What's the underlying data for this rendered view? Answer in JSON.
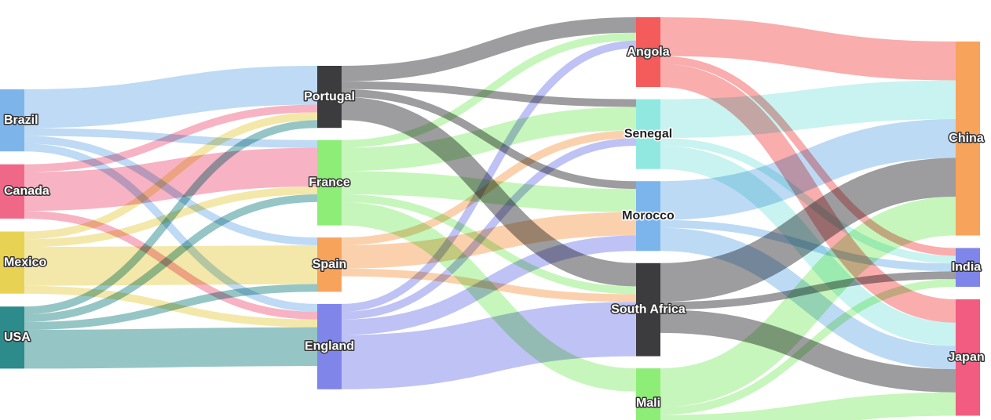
{
  "nodes": [
    {
      "id": "Brazil",
      "label": "Brazil",
      "color": "#7db5ea"
    },
    {
      "id": "Canada",
      "label": "Canada",
      "color": "#f06887"
    },
    {
      "id": "Mexico",
      "label": "Mexico",
      "color": "#e8d253"
    },
    {
      "id": "USA",
      "label": "USA",
      "color": "#2e8b8b"
    },
    {
      "id": "Portugal",
      "label": "Portugal",
      "color": "#3c3c3f"
    },
    {
      "id": "France",
      "label": "France",
      "color": "#8ded77"
    },
    {
      "id": "Spain",
      "label": "Spain",
      "color": "#f7a35c"
    },
    {
      "id": "England",
      "label": "England",
      "color": "#8085e9"
    },
    {
      "id": "Angola",
      "label": "Angola",
      "color": "#f45b5b"
    },
    {
      "id": "Senegal",
      "label": "Senegal",
      "color": "#91e8e1"
    },
    {
      "id": "Morocco",
      "label": "Morocco",
      "color": "#7cb5ec"
    },
    {
      "id": "South Africa",
      "label": "South Africa",
      "color": "#3c3c3f"
    },
    {
      "id": "Mali",
      "label": "Mali",
      "color": "#8ded77"
    },
    {
      "id": "China",
      "label": "China",
      "color": "#f7a35c"
    },
    {
      "id": "India",
      "label": "India",
      "color": "#8085e9"
    },
    {
      "id": "Japan",
      "label": "Japan",
      "color": "#f15c80"
    }
  ],
  "links": [
    {
      "source": "Brazil",
      "target": "Portugal",
      "value": 5
    },
    {
      "source": "Brazil",
      "target": "France",
      "value": 1
    },
    {
      "source": "Brazil",
      "target": "Spain",
      "value": 1
    },
    {
      "source": "Brazil",
      "target": "England",
      "value": 1
    },
    {
      "source": "Canada",
      "target": "Portugal",
      "value": 1
    },
    {
      "source": "Canada",
      "target": "France",
      "value": 5
    },
    {
      "source": "Canada",
      "target": "England",
      "value": 1
    },
    {
      "source": "Mexico",
      "target": "Portugal",
      "value": 1
    },
    {
      "source": "Mexico",
      "target": "France",
      "value": 1
    },
    {
      "source": "Mexico",
      "target": "Spain",
      "value": 5
    },
    {
      "source": "Mexico",
      "target": "England",
      "value": 1
    },
    {
      "source": "USA",
      "target": "Portugal",
      "value": 1
    },
    {
      "source": "USA",
      "target": "France",
      "value": 1
    },
    {
      "source": "USA",
      "target": "Spain",
      "value": 1
    },
    {
      "source": "USA",
      "target": "England",
      "value": 5
    },
    {
      "source": "Portugal",
      "target": "Angola",
      "value": 2
    },
    {
      "source": "Portugal",
      "target": "Senegal",
      "value": 1
    },
    {
      "source": "Portugal",
      "target": "Morocco",
      "value": 1
    },
    {
      "source": "Portugal",
      "target": "South Africa",
      "value": 3
    },
    {
      "source": "France",
      "target": "Angola",
      "value": 1
    },
    {
      "source": "France",
      "target": "Senegal",
      "value": 3
    },
    {
      "source": "France",
      "target": "Mali",
      "value": 3
    },
    {
      "source": "France",
      "target": "Morocco",
      "value": 3
    },
    {
      "source": "France",
      "target": "South Africa",
      "value": 1
    },
    {
      "source": "Spain",
      "target": "Senegal",
      "value": 1
    },
    {
      "source": "Spain",
      "target": "Morocco",
      "value": 3
    },
    {
      "source": "Spain",
      "target": "South Africa",
      "value": 1
    },
    {
      "source": "England",
      "target": "Angola",
      "value": 1
    },
    {
      "source": "England",
      "target": "Senegal",
      "value": 1
    },
    {
      "source": "England",
      "target": "Morocco",
      "value": 2
    },
    {
      "source": "England",
      "target": "South Africa",
      "value": 7
    },
    {
      "source": "South Africa",
      "target": "China",
      "value": 5
    },
    {
      "source": "South Africa",
      "target": "India",
      "value": 1
    },
    {
      "source": "South Africa",
      "target": "Japan",
      "value": 3
    },
    {
      "source": "Angola",
      "target": "China",
      "value": 5
    },
    {
      "source": "Angola",
      "target": "India",
      "value": 1
    },
    {
      "source": "Angola",
      "target": "Japan",
      "value": 3
    },
    {
      "source": "Senegal",
      "target": "China",
      "value": 5
    },
    {
      "source": "Senegal",
      "target": "India",
      "value": 1
    },
    {
      "source": "Senegal",
      "target": "Japan",
      "value": 3
    },
    {
      "source": "Mali",
      "target": "China",
      "value": 5
    },
    {
      "source": "Mali",
      "target": "India",
      "value": 1
    },
    {
      "source": "Mali",
      "target": "Japan",
      "value": 3
    },
    {
      "source": "Morocco",
      "target": "China",
      "value": 5
    },
    {
      "source": "Morocco",
      "target": "India",
      "value": 1
    },
    {
      "source": "Morocco",
      "target": "Japan",
      "value": 3
    }
  ]
}
